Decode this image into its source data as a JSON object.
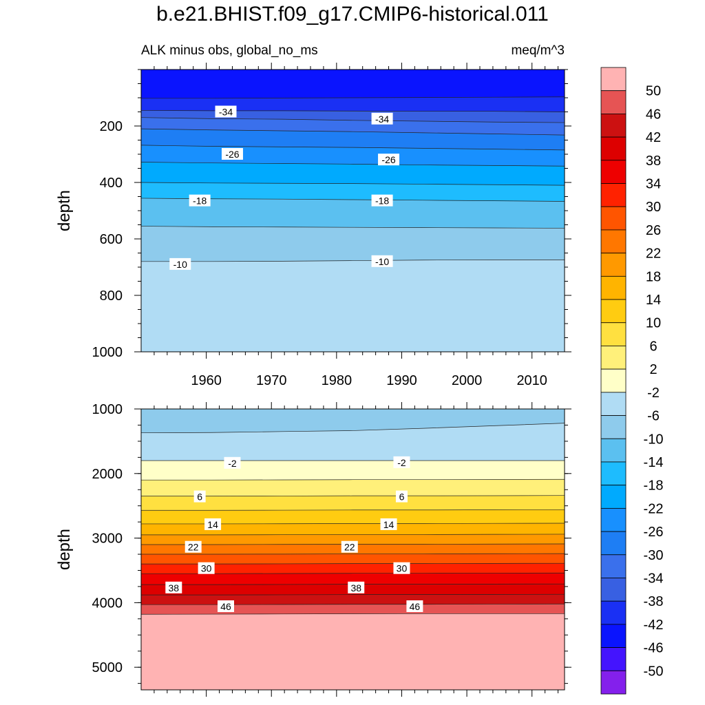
{
  "title": "b.e21.BHIST.f09_g17.CMIP6-historical.011",
  "subtitle_left": "ALK minus obs, global_no_ms",
  "subtitle_right": "meq/m^3",
  "chart_data": [
    {
      "type": "contour",
      "panel": "upper",
      "ylabel": "depth",
      "xlim": [
        1950,
        2015
      ],
      "ylim": [
        1000,
        0
      ],
      "x_ticks": [
        1960,
        1970,
        1980,
        1990,
        2000,
        2010
      ],
      "y_ticks": [
        200,
        400,
        600,
        800,
        1000
      ],
      "contour_lines": [
        {
          "level": -42,
          "depths": [
            102,
            102,
            101,
            100,
            99,
            98,
            97
          ]
        },
        {
          "level": -38,
          "depths": [
            145,
            146,
            146,
            147,
            148,
            148,
            150
          ]
        },
        {
          "level": -34,
          "depths": [
            170,
            174,
            176,
            180,
            183,
            186,
            188
          ]
        },
        {
          "level": -30,
          "depths": [
            210,
            214,
            217,
            220,
            224,
            228,
            232
          ]
        },
        {
          "level": -26,
          "depths": [
            268,
            272,
            274,
            276,
            279,
            282,
            285
          ]
        },
        {
          "level": -22,
          "depths": [
            328,
            331,
            333,
            335,
            338,
            340,
            342
          ]
        },
        {
          "level": -18,
          "depths": [
            400,
            402,
            403,
            404,
            406,
            408,
            410
          ]
        },
        {
          "level": -14,
          "depths": [
            456,
            458,
            459,
            461,
            463,
            465,
            467
          ]
        },
        {
          "level": -10,
          "depths": [
            555,
            557,
            558,
            559,
            560,
            561,
            562
          ]
        },
        {
          "level": -6,
          "depths": [
            680,
            680,
            679,
            677,
            675,
            674,
            674
          ]
        }
      ],
      "labels": [
        {
          "text": "-34",
          "x": 1963,
          "depth": 150
        },
        {
          "text": "-34",
          "x": 1987,
          "depth": 175
        },
        {
          "text": "-26",
          "x": 1964,
          "depth": 300
        },
        {
          "text": "-26",
          "x": 1988,
          "depth": 320
        },
        {
          "text": "-18",
          "x": 1959,
          "depth": 465
        },
        {
          "text": "-18",
          "x": 1987,
          "depth": 465
        },
        {
          "text": "-10",
          "x": 1956,
          "depth": 690
        },
        {
          "text": "-10",
          "x": 1987,
          "depth": 680
        }
      ]
    },
    {
      "type": "contour",
      "panel": "lower",
      "ylabel": "depth",
      "xlim": [
        1950,
        2015
      ],
      "ylim": [
        5350,
        1000
      ],
      "y_ticks": [
        1000,
        2000,
        3000,
        4000,
        5000
      ],
      "contour_lines": [
        {
          "level": -6,
          "depths": [
            1370,
            1365,
            1350,
            1335,
            1300,
            1260,
            1220
          ]
        },
        {
          "level": -2,
          "depths": [
            1800,
            1800,
            1800,
            1800,
            1800,
            1800,
            1800
          ]
        },
        {
          "level": 2,
          "depths": [
            2100,
            2100,
            2098,
            2095,
            2095,
            2093,
            2090
          ]
        },
        {
          "level": 6,
          "depths": [
            2350,
            2350,
            2348,
            2345,
            2345,
            2343,
            2340
          ]
        },
        {
          "level": 10,
          "depths": [
            2570,
            2570,
            2568,
            2565,
            2565,
            2562,
            2560
          ]
        },
        {
          "level": 14,
          "depths": [
            2780,
            2780,
            2778,
            2775,
            2775,
            2772,
            2770
          ]
        },
        {
          "level": 18,
          "depths": [
            2950,
            2950,
            2948,
            2945,
            2945,
            2942,
            2940
          ]
        },
        {
          "level": 22,
          "depths": [
            3100,
            3100,
            3098,
            3095,
            3095,
            3092,
            3090
          ]
        },
        {
          "level": 26,
          "depths": [
            3250,
            3250,
            3248,
            3245,
            3245,
            3242,
            3240
          ]
        },
        {
          "level": 30,
          "depths": [
            3400,
            3400,
            3398,
            3395,
            3395,
            3392,
            3390
          ]
        },
        {
          "level": 34,
          "depths": [
            3550,
            3550,
            3548,
            3545,
            3545,
            3542,
            3540
          ]
        },
        {
          "level": 38,
          "depths": [
            3720,
            3720,
            3718,
            3715,
            3715,
            3712,
            3710
          ]
        },
        {
          "level": 42,
          "depths": [
            3880,
            3880,
            3878,
            3875,
            3875,
            3872,
            3870
          ]
        },
        {
          "level": 46,
          "depths": [
            4030,
            4030,
            4028,
            4025,
            4025,
            4022,
            4020
          ]
        },
        {
          "level": 50,
          "depths": [
            4180,
            4178,
            4175,
            4172,
            4170,
            4170,
            4170
          ]
        }
      ],
      "labels": [
        {
          "text": "-2",
          "x": 1964,
          "depth": 1840
        },
        {
          "text": "-2",
          "x": 1990,
          "depth": 1830
        },
        {
          "text": "6",
          "x": 1959,
          "depth": 2360
        },
        {
          "text": "6",
          "x": 1990,
          "depth": 2360
        },
        {
          "text": "14",
          "x": 1961,
          "depth": 2790
        },
        {
          "text": "14",
          "x": 1988,
          "depth": 2790
        },
        {
          "text": "22",
          "x": 1958,
          "depth": 3140
        },
        {
          "text": "22",
          "x": 1982,
          "depth": 3140
        },
        {
          "text": "30",
          "x": 1960,
          "depth": 3470
        },
        {
          "text": "30",
          "x": 1990,
          "depth": 3470
        },
        {
          "text": "38",
          "x": 1955,
          "depth": 3770
        },
        {
          "text": "38",
          "x": 1983,
          "depth": 3770
        },
        {
          "text": "46",
          "x": 1963,
          "depth": 4060
        },
        {
          "text": "46",
          "x": 1992,
          "depth": 4060
        }
      ]
    }
  ],
  "colorbar": {
    "labels": [
      "50",
      "46",
      "42",
      "38",
      "34",
      "30",
      "26",
      "22",
      "18",
      "14",
      "10",
      "6",
      "2",
      "-2",
      "-6",
      "-10",
      "-14",
      "-18",
      "-22",
      "-26",
      "-30",
      "-34",
      "-38",
      "-42",
      "-46",
      "-50"
    ],
    "colors": [
      "#ffb3b3",
      "#e65454",
      "#cc1111",
      "#dd0000",
      "#ee0000",
      "#ff2200",
      "#ff5500",
      "#ff7700",
      "#ff9900",
      "#ffb400",
      "#ffcc11",
      "#ffe040",
      "#fff07a",
      "#ffffc8",
      "#b0dcf4",
      "#8ecbec",
      "#5bc0f0",
      "#1ebcfe",
      "#00aafe",
      "#1890fe",
      "#1e7ef4",
      "#3a70ec",
      "#3860e2",
      "#1a30f4",
      "#0a14fe",
      "#4414fe",
      "#8420ec"
    ]
  }
}
